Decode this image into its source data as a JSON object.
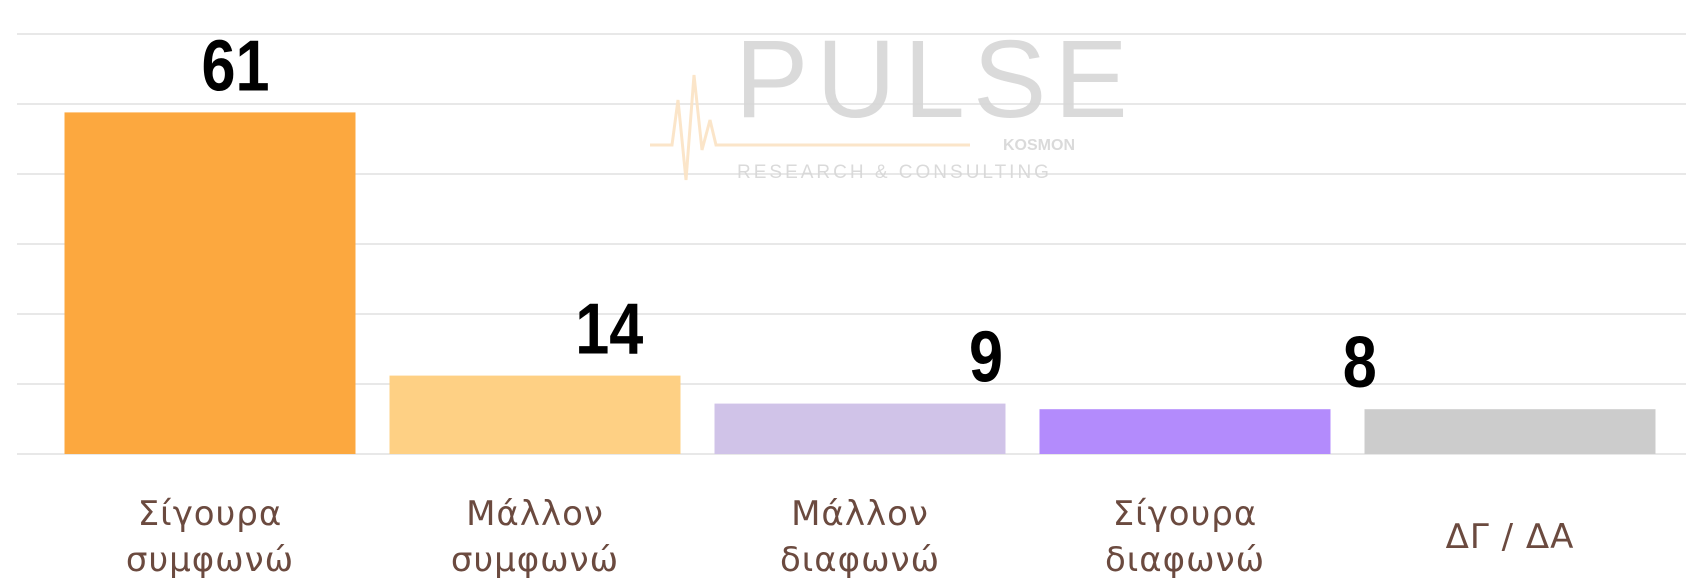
{
  "chart_data": {
    "type": "bar",
    "categories": [
      "Σίγουρα συμφωνώ",
      "Μάλλον συμφωνώ",
      "Μάλλον διαφωνώ",
      "Σίγουρα διαφωνώ",
      "ΔΓ / ΔΑ"
    ],
    "values": [
      61,
      14,
      9,
      8,
      8
    ],
    "colors": [
      "#fca83f",
      "#fed084",
      "#d0c3e8",
      "#b38bfc",
      "#cccccc"
    ],
    "ylim": [
      0,
      75
    ],
    "yticks": [
      0,
      12.5,
      25,
      37.5,
      50,
      62.5,
      75
    ],
    "grid": true,
    "watermark": {
      "title": "PULSE",
      "sub": "KOSMON",
      "tagline": "RESEARCH & CONSULTING"
    }
  }
}
